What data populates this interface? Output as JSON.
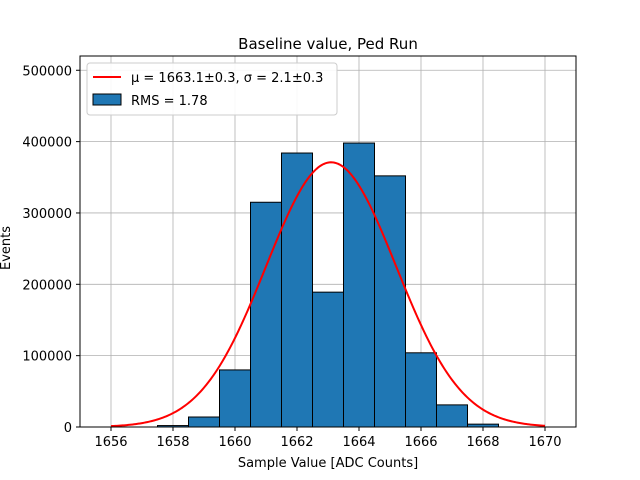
{
  "chart_data": {
    "type": "bar",
    "title": "Baseline value, Ped Run",
    "xlabel": "Sample Value [ADC Counts]",
    "ylabel": "Events",
    "xlim": [
      1655,
      1671
    ],
    "ylim": [
      0,
      520000
    ],
    "xticks": [
      1656,
      1658,
      1660,
      1662,
      1664,
      1666,
      1668,
      1670
    ],
    "yticks": [
      0,
      100000,
      200000,
      300000,
      400000,
      500000
    ],
    "grid": true,
    "legend_position": "upper left",
    "bin_width": 1,
    "bins": [
      {
        "center": 1658,
        "value": 2000
      },
      {
        "center": 1659,
        "value": 14000
      },
      {
        "center": 1660,
        "value": 80000
      },
      {
        "center": 1661,
        "value": 315000
      },
      {
        "center": 1662,
        "value": 384000
      },
      {
        "center": 1663,
        "value": 189000
      },
      {
        "center": 1664,
        "value": 398000
      },
      {
        "center": 1665,
        "value": 352000
      },
      {
        "center": 1666,
        "value": 104000
      },
      {
        "center": 1667,
        "value": 31000
      },
      {
        "center": 1668,
        "value": 4000
      }
    ],
    "series": [
      {
        "name": "RMS = 1.78",
        "kind": "histogram",
        "color": "#1f77b4",
        "edgecolor": "#000000"
      },
      {
        "name": "μ = 1663.1±0.3, σ = 2.1±0.3",
        "kind": "gaussian-fit",
        "color": "#ff0000",
        "mu": 1663.1,
        "sigma": 2.1,
        "amplitude": 371000,
        "x_range": [
          1656,
          1670
        ]
      }
    ]
  }
}
